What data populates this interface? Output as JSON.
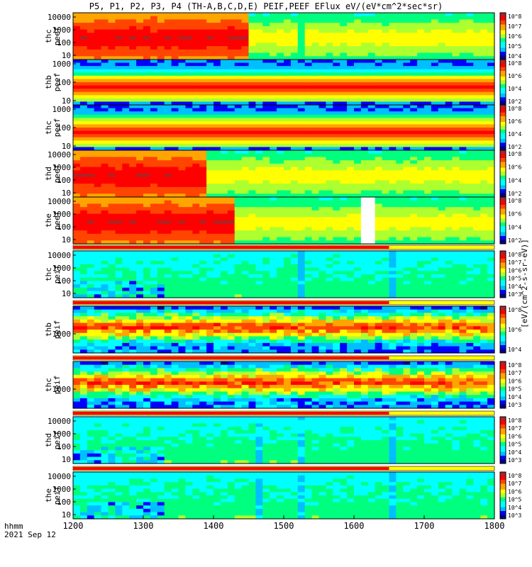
{
  "chart_data": {
    "type": "heatmap",
    "title": "P5, P1, P2, P3, P4 (TH-A,B,C,D,E) PEIF,PEEF EFlux eV/(eV*cm^2*sec*sr)",
    "xlabel_left": "hhmm",
    "date_label": "2021 Sep 12",
    "x_ticks": [
      "1200",
      "1300",
      "1400",
      "1500",
      "1600",
      "1700",
      "1800"
    ],
    "xlim": [
      1200,
      1800
    ],
    "colorbar_axis_label": "[eV/(cm^2-s-sr-eV)]",
    "panels": [
      {
        "name": "thc peef",
        "species": "electron",
        "probe": "thc",
        "ylabel": "thc\npeef",
        "yscale": "log",
        "y_ticks": [
          "10",
          "100",
          "1000",
          "10000"
        ],
        "cbar_ticks": [
          "10^4",
          "10^5",
          "10^6",
          "10^7",
          "10^8"
        ]
      },
      {
        "name": "thb peef",
        "species": "electron",
        "probe": "thb",
        "ylabel": "thb\npeef",
        "yscale": "log",
        "y_ticks": [
          "10",
          "100",
          "1000"
        ],
        "cbar_ticks": [
          "10^2",
          "10^4",
          "10^6",
          "10^8"
        ]
      },
      {
        "name": "thc peef",
        "species": "electron",
        "probe": "thc",
        "ylabel": "thc\npeef",
        "yscale": "log",
        "y_ticks": [
          "10",
          "100",
          "1000"
        ],
        "cbar_ticks": [
          "10^2",
          "10^4",
          "10^6",
          "10^8"
        ]
      },
      {
        "name": "thd peef",
        "species": "electron",
        "probe": "thd",
        "ylabel": "thd\npeef",
        "yscale": "log",
        "y_ticks": [
          "10",
          "100",
          "1000",
          "10000"
        ],
        "cbar_ticks": [
          "10^2",
          "10^4",
          "10^6",
          "10^8"
        ]
      },
      {
        "name": "the peef",
        "species": "electron",
        "probe": "the",
        "ylabel": "the\npeef",
        "yscale": "log",
        "y_ticks": [
          "10",
          "100",
          "1000",
          "10000"
        ],
        "cbar_ticks": [
          "10^2",
          "10^4",
          "10^6",
          "10^8"
        ]
      },
      {
        "name": "thc peif",
        "species": "ion",
        "probe": "thc",
        "ylabel": "thc\npeif",
        "yscale": "log",
        "y_ticks": [
          "10",
          "100",
          "1000",
          "10000"
        ],
        "cbar_ticks": [
          "10^3",
          "10^4",
          "10^5",
          "10^6",
          "10^7",
          "10^8"
        ]
      },
      {
        "name": "thb peif",
        "species": "ion",
        "probe": "thb",
        "ylabel": "thb\npeif",
        "yscale": "log",
        "y_ticks": [
          "1000"
        ],
        "cbar_ticks": [
          "10^4",
          "10^6",
          "10^8"
        ]
      },
      {
        "name": "thc peif",
        "species": "ion",
        "probe": "thc",
        "ylabel": "thc\npeif",
        "yscale": "log",
        "y_ticks": [
          "1000"
        ],
        "cbar_ticks": [
          "10^3",
          "10^4",
          "10^5",
          "10^6",
          "10^7",
          "10^8"
        ]
      },
      {
        "name": "thd peif",
        "species": "ion",
        "probe": "thd",
        "ylabel": "thd\npeif",
        "yscale": "log",
        "y_ticks": [
          "10",
          "100",
          "1000",
          "10000"
        ],
        "cbar_ticks": [
          "10^3",
          "10^4",
          "10^5",
          "10^6",
          "10^7",
          "10^8"
        ]
      },
      {
        "name": "the peif",
        "species": "ion",
        "probe": "the",
        "ylabel": "the\npeif",
        "yscale": "log",
        "y_ticks": [
          "10",
          "100",
          "1000",
          "10000"
        ],
        "cbar_ticks": [
          "10^3",
          "10^4",
          "10^5",
          "10^6",
          "10^7",
          "10^8"
        ]
      }
    ],
    "colormap": [
      "#000080",
      "#0000ff",
      "#00bfff",
      "#00ffff",
      "#00ff7f",
      "#adff2f",
      "#ffff00",
      "#ffa500",
      "#ff4500",
      "#ff0000",
      "#b22222"
    ]
  }
}
